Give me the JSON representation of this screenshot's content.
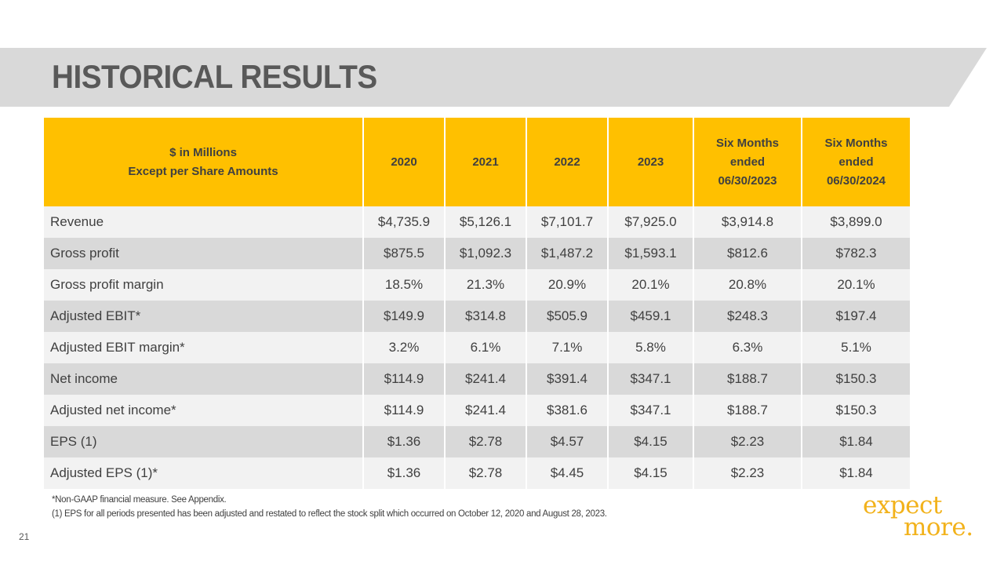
{
  "header": {
    "title": "HISTORICAL RESULTS"
  },
  "table": {
    "header": {
      "label_lines": [
        "$ in Millions",
        "Except per Share Amounts"
      ],
      "columns": [
        {
          "lines": [
            "2020"
          ]
        },
        {
          "lines": [
            "2021"
          ]
        },
        {
          "lines": [
            "2022"
          ]
        },
        {
          "lines": [
            "2023"
          ]
        },
        {
          "lines": [
            "Six Months",
            "ended",
            "06/30/2023"
          ]
        },
        {
          "lines": [
            "Six Months",
            "ended",
            "06/30/2024"
          ]
        }
      ]
    },
    "rows": [
      {
        "label": "Revenue",
        "values": [
          "$4,735.9",
          "$5,126.1",
          "$7,101.7",
          "$7,925.0",
          "$3,914.8",
          "$3,899.0"
        ]
      },
      {
        "label": "Gross profit",
        "values": [
          "$875.5",
          "$1,092.3",
          "$1,487.2",
          "$1,593.1",
          "$812.6",
          "$782.3"
        ]
      },
      {
        "label": "Gross profit margin",
        "values": [
          "18.5%",
          "21.3%",
          "20.9%",
          "20.1%",
          "20.8%",
          "20.1%"
        ]
      },
      {
        "label": "Adjusted EBIT*",
        "values": [
          "$149.9",
          "$314.8",
          "$505.9",
          "$459.1",
          "$248.3",
          "$197.4"
        ]
      },
      {
        "label": "Adjusted EBIT margin*",
        "values": [
          "3.2%",
          "6.1%",
          "7.1%",
          "5.8%",
          "6.3%",
          "5.1%"
        ]
      },
      {
        "label": "Net income",
        "values": [
          "$114.9",
          "$241.4",
          "$391.4",
          "$347.1",
          "$188.7",
          "$150.3"
        ]
      },
      {
        "label": "Adjusted net income*",
        "values": [
          "$114.9",
          "$241.4",
          "$381.6",
          "$347.1",
          "$188.7",
          "$150.3"
        ]
      },
      {
        "label": "EPS (1)",
        "values": [
          "$1.36",
          "$2.78",
          "$4.57",
          "$4.15",
          "$2.23",
          "$1.84"
        ]
      },
      {
        "label": "Adjusted EPS (1)*",
        "values": [
          "$1.36",
          "$2.78",
          "$4.45",
          "$4.15",
          "$2.23",
          "$1.84"
        ]
      }
    ]
  },
  "footnotes": [
    "*Non-GAAP financial measure.  See Appendix.",
    "(1)  EPS for all periods presented has been adjusted and restated to reflect the stock split which occurred on October 12, 2020 and August 28, 2023."
  ],
  "page_number": "21",
  "logo": {
    "line1": "expect",
    "line2": "more."
  },
  "colors": {
    "accent": "#ffc000",
    "band": "#d9d9d9",
    "text": "#404040",
    "logo": "#f2b21b"
  }
}
